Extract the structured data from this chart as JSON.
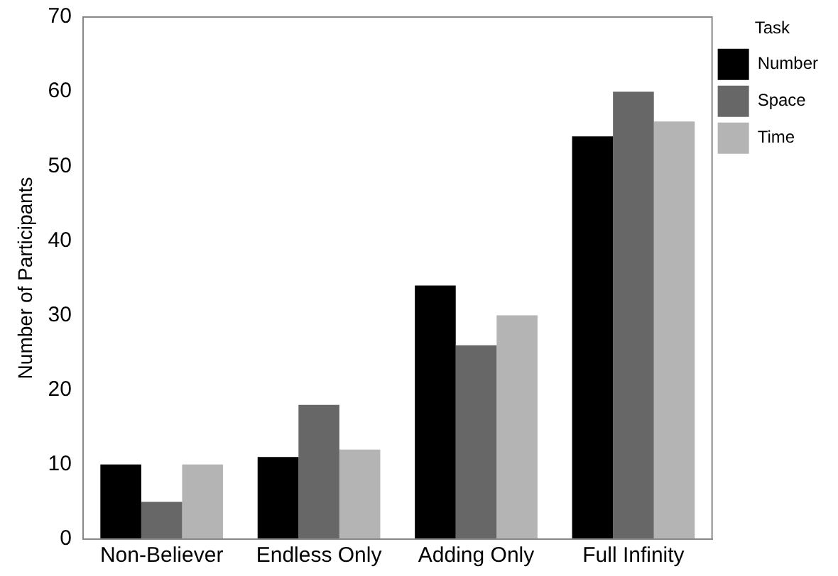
{
  "chart_data": {
    "type": "bar",
    "ylabel": "Number of Participants",
    "legend_title": "Task",
    "categories": [
      "Non-Believer",
      "Endless Only",
      "Adding Only",
      "Full Infinity"
    ],
    "series": [
      {
        "name": "Number",
        "color": "#000000",
        "values": [
          10,
          11,
          34,
          54
        ]
      },
      {
        "name": "Space",
        "color": "#676767",
        "values": [
          5,
          18,
          26,
          60
        ]
      },
      {
        "name": "Time",
        "color": "#b4b4b4",
        "values": [
          10,
          12,
          30,
          56
        ]
      }
    ],
    "ylim": [
      0,
      70
    ],
    "yticks": [
      0,
      10,
      20,
      30,
      40,
      50,
      60,
      70
    ],
    "grid": false,
    "legend": "top right"
  }
}
